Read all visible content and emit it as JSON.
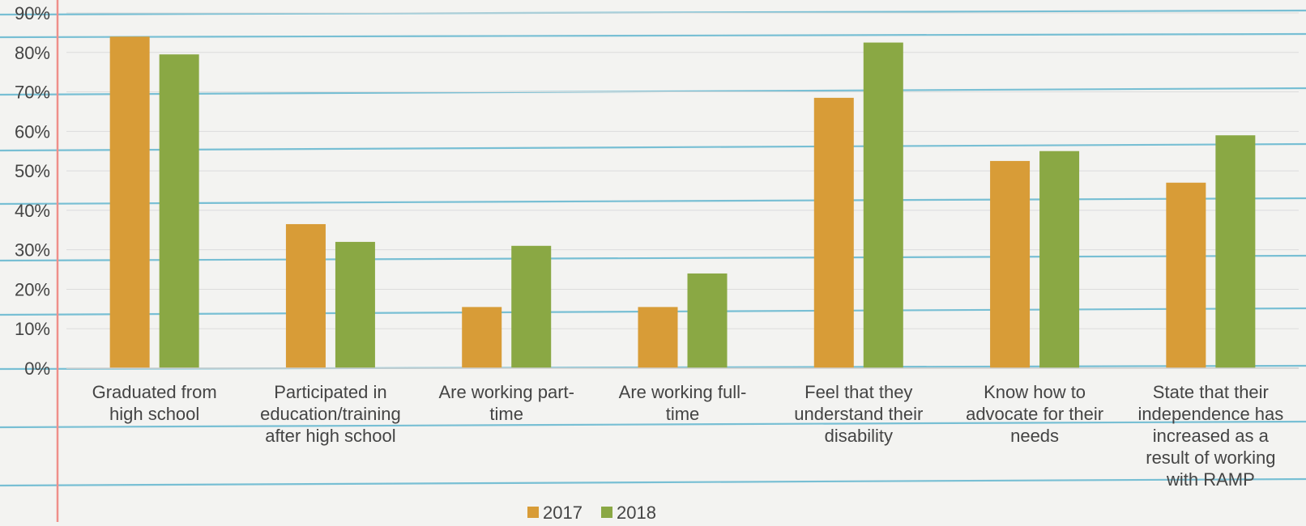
{
  "chart_data": {
    "type": "bar",
    "title": "",
    "xlabel": "",
    "ylabel": "",
    "ylim": [
      0,
      90
    ],
    "yticks": [
      "0%",
      "10%",
      "20%",
      "30%",
      "40%",
      "50%",
      "60%",
      "70%",
      "80%",
      "90%"
    ],
    "grid": true,
    "legend_position": "bottom-center",
    "categories": [
      [
        "Graduated from",
        "high school"
      ],
      [
        "Participated in",
        "education/training",
        "after high school"
      ],
      [
        "Are working part-",
        "time"
      ],
      [
        "Are working full-",
        "time"
      ],
      [
        "Feel that they",
        "understand their",
        "disability"
      ],
      [
        "Know how to",
        "advocate for their",
        "needs"
      ],
      [
        "State that their",
        "independence has",
        "increased as a",
        "result of working",
        "with RAMP"
      ]
    ],
    "series": [
      {
        "name": "2017",
        "color": "#D89C37",
        "values": [
          84,
          36.5,
          15.5,
          15.5,
          68.5,
          52.5,
          47
        ]
      },
      {
        "name": "2018",
        "color": "#8AA844",
        "values": [
          79.5,
          32,
          31,
          24,
          82.5,
          55,
          59
        ]
      }
    ]
  },
  "colors": {
    "paper": "#f3f3f1",
    "ruled_line": "#63b7cf",
    "margin_line": "#ef8f8a",
    "gridline": "#dcdcdc",
    "text": "#444444"
  }
}
